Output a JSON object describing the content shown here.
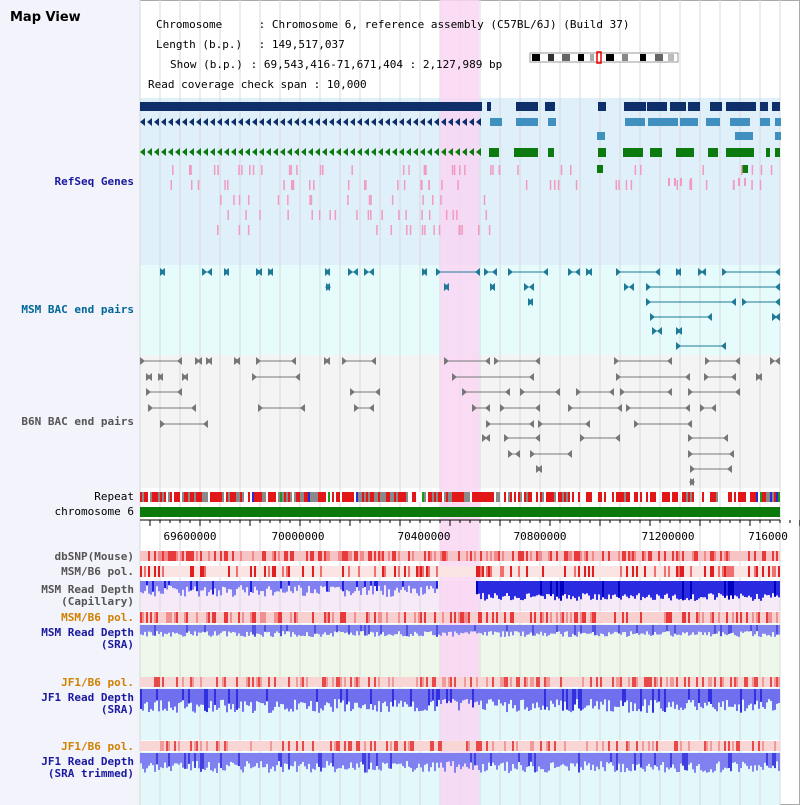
{
  "title": "Map View",
  "info": {
    "line1_key": "Chromosome",
    "line1_val": "Chromosome 6, reference assembly (C57BL/6J) (Build 37)",
    "line2_key": "Length (b.p.)",
    "line2_val": "149,517,037",
    "line3_key": "Show (b.p.)",
    "line3_val": "69,543,416-71,671,404 : 2,127,989 bp",
    "line4_key": "Read coverage check span",
    "line4_val": "10,000"
  },
  "tracks": {
    "refseq": "RefSeq Genes",
    "msm_bac": "MSM BAC end pairs",
    "b6n_bac": "B6N BAC end pairs",
    "repeat": "Repeat",
    "chromosome": "chromosome 6",
    "dbsnp": "dbSNP(Mouse)",
    "msm_b6_pol_1": "MSM/B6 pol.",
    "msm_read_depth_cap": "MSM Read Depth\n(Capillary)",
    "msm_b6_pol_2": "MSM/B6 pol.",
    "msm_read_depth_sra": "MSM Read Depth\n(SRA)",
    "jf1_b6_pol_1": "JF1/B6 pol.",
    "jf1_read_depth_sra": "JF1 Read Depth\n(SRA)",
    "jf1_b6_pol_2": "JF1/B6 pol.",
    "jf1_read_depth_trimmed": "JF1 Read Depth\n(SRA trimmed)"
  },
  "axis": {
    "ticks": [
      "69600000",
      "70000000",
      "70400000",
      "70800000",
      "71200000",
      "716000"
    ]
  },
  "colors": {
    "refseq_label": "#1a1aa0",
    "msm_bac_label": "#006699",
    "b6n_label": "#555555",
    "pol_label": "#d08000",
    "depth_label": "#1a1aa0",
    "highlight": "#f9d6f3",
    "gene_navy": "#0e2f6a",
    "gene_blue": "#3f8fbf",
    "gene_green": "#0d7a10"
  }
}
